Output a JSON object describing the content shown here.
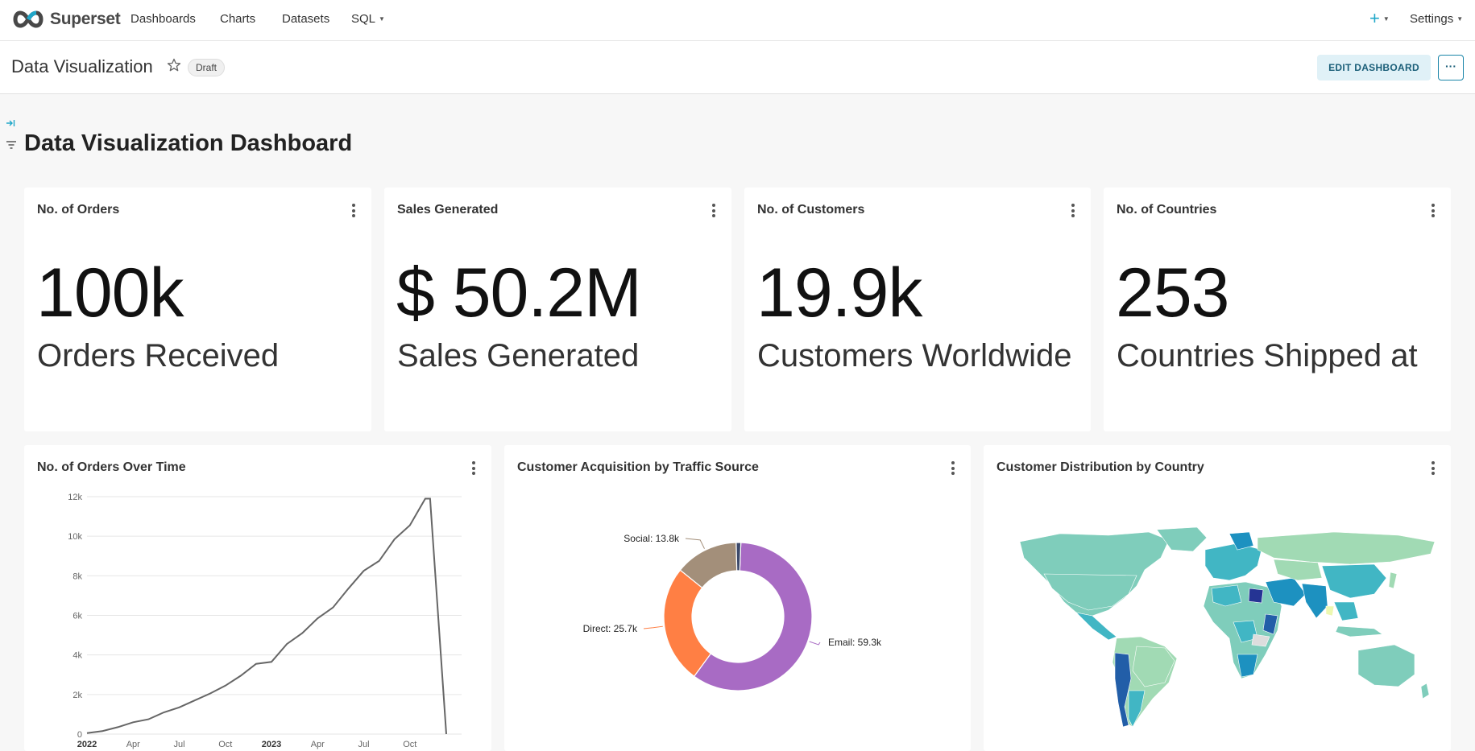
{
  "navbar": {
    "brand": "Superset",
    "items": [
      {
        "label": "Dashboards"
      },
      {
        "label": "Charts"
      },
      {
        "label": "Datasets"
      },
      {
        "label": "SQL"
      }
    ],
    "plus": "+",
    "settings": "Settings"
  },
  "header": {
    "title": "Data Visualization",
    "badge": "Draft",
    "edit_label": "EDIT DASHBOARD",
    "more_label": "···"
  },
  "page": {
    "title": "Data Visualization Dashboard"
  },
  "kpis": [
    {
      "title": "No. of Orders",
      "value": "100k",
      "subtitle": "Orders Received"
    },
    {
      "title": "Sales Generated",
      "value": "$ 50.2M",
      "subtitle": "Sales Generated"
    },
    {
      "title": "No. of Customers",
      "value": "19.9k",
      "subtitle": "Customers Worldwide"
    },
    {
      "title": "No. of Countries",
      "value": "253",
      "subtitle": "Countries Shipped at"
    }
  ],
  "charts": {
    "orders": {
      "title": "No. of Orders Over Time"
    },
    "acquisition": {
      "title": "Customer Acquisition by Traffic Source"
    },
    "distribution": {
      "title": "Customer Distribution by Country"
    }
  },
  "chart_data": [
    {
      "type": "line",
      "title": "No. of Orders Over Time",
      "x": [
        "2022-01",
        "2022-02",
        "2022-03",
        "2022-04",
        "2022-05",
        "2022-06",
        "2022-07",
        "2022-08",
        "2022-09",
        "2022-10",
        "2022-11",
        "2022-12",
        "2023-01",
        "2023-02",
        "2023-03",
        "2023-04",
        "2023-05",
        "2023-06",
        "2023-07",
        "2023-08",
        "2023-09",
        "2023-10",
        "2023-11",
        "2023-12",
        "2024-01"
      ],
      "values": [
        50,
        150,
        350,
        600,
        750,
        1100,
        1350,
        1700,
        2050,
        2450,
        2950,
        3550,
        3650,
        4550,
        5100,
        5850,
        6400,
        7350,
        8250,
        8750,
        9850,
        10550,
        11900,
        0,
        0
      ],
      "ylim": [
        0,
        12000
      ],
      "yticks": [
        0,
        2000,
        4000,
        6000,
        8000,
        10000,
        12000
      ],
      "ytick_labels": [
        "0",
        "2k",
        "4k",
        "6k",
        "8k",
        "10k",
        "12k"
      ],
      "xtick_labels": [
        "2022",
        "Apr",
        "Jul",
        "Oct",
        "2023",
        "Apr",
        "Jul",
        "Oct"
      ],
      "grid": true,
      "color": "#666666"
    },
    {
      "type": "pie",
      "title": "Customer Acquisition by Traffic Source",
      "slices": [
        {
          "label": "Email: 59.3k",
          "value": 59.3,
          "color": "#a86bc4"
        },
        {
          "label": "Direct: 25.7k",
          "value": 25.7,
          "color": "#ff7f44"
        },
        {
          "label": "Social: 13.8k",
          "value": 13.8,
          "color": "#a38f7a"
        },
        {
          "label": "",
          "value": 1.0,
          "color": "#3d4a6b"
        }
      ],
      "donut": true
    }
  ],
  "colors": {
    "accent": "#20a7c9",
    "primary_dark": "#1a5e78"
  }
}
